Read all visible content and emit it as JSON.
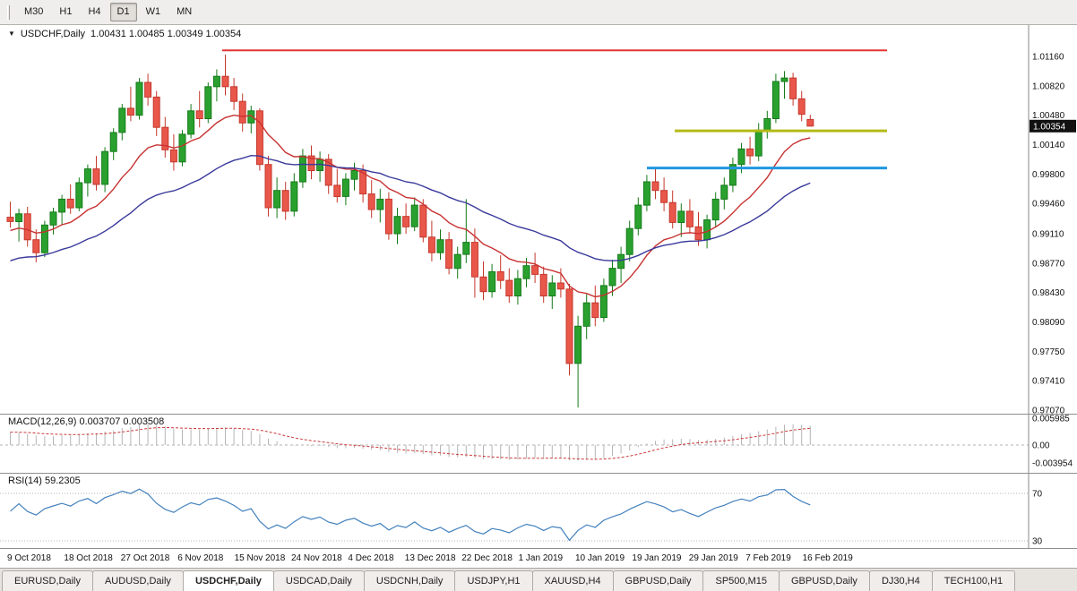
{
  "toolbar": {
    "timeframes": [
      {
        "label": "M30",
        "active": false
      },
      {
        "label": "H1",
        "active": false
      },
      {
        "label": "H4",
        "active": false
      },
      {
        "label": "D1",
        "active": true
      },
      {
        "label": "W1",
        "active": false
      },
      {
        "label": "MN",
        "active": false
      }
    ]
  },
  "chart": {
    "title_symbol": "USDCHF,Daily",
    "ohlc_text": "1.00431 1.00485 1.00349 1.00354",
    "current_price_label": "1.00354"
  },
  "macd_panel": {
    "label": "MACD(12,26,9) 0.003707 0.003508"
  },
  "rsi_panel": {
    "label": "RSI(14) 59.2305"
  },
  "chart_data": {
    "type": "candlestick",
    "symbol": "USDCHF",
    "timeframe": "Daily",
    "title": "USDCHF,Daily",
    "y_ticks": [
      "1.01160",
      "1.00820",
      "1.00480",
      "1.00140",
      "0.99800",
      "0.99460",
      "0.99110",
      "0.98770",
      "0.98430",
      "0.98090",
      "0.97750",
      "0.97410",
      "0.97070"
    ],
    "current_price": 1.00354,
    "x_labels": [
      "9 Oct 2018",
      "18 Oct 2018",
      "27 Oct 2018",
      "6 Nov 2018",
      "15 Nov 2018",
      "24 Nov 2018",
      "4 Dec 2018",
      "13 Dec 2018",
      "22 Dec 2018",
      "1 Jan 2019",
      "10 Jan 2019",
      "19 Jan 2019",
      "29 Jan 2019",
      "7 Feb 2019",
      "16 Feb 2019"
    ],
    "candles": [
      [
        0.993,
        0.9948,
        0.9918,
        0.9925
      ],
      [
        0.9925,
        0.994,
        0.9902,
        0.9934
      ],
      [
        0.9934,
        0.9942,
        0.9896,
        0.9904
      ],
      [
        0.9904,
        0.9916,
        0.9878,
        0.9889
      ],
      [
        0.9889,
        0.9926,
        0.9884,
        0.9921
      ],
      [
        0.9921,
        0.9941,
        0.991,
        0.9936
      ],
      [
        0.9936,
        0.9956,
        0.9921,
        0.9951
      ],
      [
        0.9951,
        0.9968,
        0.9934,
        0.9941
      ],
      [
        0.9941,
        0.9976,
        0.9937,
        0.997
      ],
      [
        0.997,
        0.9991,
        0.9954,
        0.9986
      ],
      [
        0.9986,
        1.0001,
        0.9961,
        0.9968
      ],
      [
        0.9968,
        1.0011,
        0.9959,
        1.0006
      ],
      [
        1.0006,
        1.0033,
        0.9996,
        1.0028
      ],
      [
        1.0028,
        1.0061,
        1.0019,
        1.0056
      ],
      [
        1.0056,
        1.0081,
        1.0041,
        1.0048
      ],
      [
        1.0048,
        1.0091,
        1.0043,
        1.0086
      ],
      [
        1.0086,
        1.0096,
        1.0059,
        1.0069
      ],
      [
        1.0069,
        1.0076,
        1.0024,
        1.0034
      ],
      [
        1.0034,
        1.0046,
        0.9999,
        1.0008
      ],
      [
        1.0008,
        1.0026,
        0.9984,
        0.9994
      ],
      [
        0.9994,
        1.0031,
        0.9989,
        1.0026
      ],
      [
        1.0026,
        1.0061,
        1.0021,
        1.0053
      ],
      [
        1.0053,
        1.0076,
        1.0034,
        1.0044
      ],
      [
        1.0044,
        1.0086,
        1.0039,
        1.0081
      ],
      [
        1.0081,
        1.0101,
        1.0064,
        1.0093
      ],
      [
        1.0093,
        1.0118,
        1.0071,
        1.0081
      ],
      [
        1.0081,
        1.0091,
        1.0054,
        1.0064
      ],
      [
        1.0064,
        1.0073,
        1.0029,
        1.0039
      ],
      [
        1.0039,
        1.0059,
        1.0027,
        1.0053
      ],
      [
        1.0053,
        1.0056,
        0.9984,
        0.9991
      ],
      [
        0.9991,
        1.0001,
        0.9931,
        0.9941
      ],
      [
        0.9941,
        0.9976,
        0.9929,
        0.9961
      ],
      [
        0.9961,
        0.9971,
        0.9927,
        0.9937
      ],
      [
        0.9937,
        0.9981,
        0.9931,
        0.9971
      ],
      [
        0.9971,
        1.0009,
        0.9964,
        1.0001
      ],
      [
        1.0001,
        1.0013,
        0.9974,
        0.9984
      ],
      [
        0.9984,
        1.0006,
        0.9971,
        0.9997
      ],
      [
        0.9997,
        1.0003,
        0.9957,
        0.9967
      ],
      [
        0.9967,
        0.9986,
        0.9947,
        0.9954
      ],
      [
        0.9954,
        0.9981,
        0.9944,
        0.9974
      ],
      [
        0.9974,
        0.9993,
        0.9961,
        0.9984
      ],
      [
        0.9984,
        0.9991,
        0.9947,
        0.9957
      ],
      [
        0.9957,
        0.9973,
        0.9929,
        0.9939
      ],
      [
        0.9939,
        0.9963,
        0.9924,
        0.9951
      ],
      [
        0.9951,
        0.9959,
        0.9904,
        0.9911
      ],
      [
        0.9911,
        0.9941,
        0.9899,
        0.9931
      ],
      [
        0.9931,
        0.9946,
        0.9911,
        0.9919
      ],
      [
        0.9919,
        0.9953,
        0.9914,
        0.9944
      ],
      [
        0.9944,
        0.9951,
        0.9901,
        0.9907
      ],
      [
        0.9907,
        0.9926,
        0.9879,
        0.9889
      ],
      [
        0.9889,
        0.9916,
        0.9881,
        0.9904
      ],
      [
        0.9904,
        0.9913,
        0.9864,
        0.9871
      ],
      [
        0.9871,
        0.9896,
        0.9859,
        0.9887
      ],
      [
        0.9887,
        0.9951,
        0.9877,
        0.9901
      ],
      [
        0.9901,
        0.9917,
        0.9837,
        0.9861
      ],
      [
        0.9861,
        0.9879,
        0.9834,
        0.9844
      ],
      [
        0.9844,
        0.9876,
        0.9837,
        0.9867
      ],
      [
        0.9867,
        0.9886,
        0.9847,
        0.9857
      ],
      [
        0.9857,
        0.9871,
        0.9831,
        0.9839
      ],
      [
        0.9839,
        0.9869,
        0.9829,
        0.9859
      ],
      [
        0.9859,
        0.9883,
        0.9849,
        0.9874
      ],
      [
        0.9874,
        0.9889,
        0.9854,
        0.9864
      ],
      [
        0.9864,
        0.9873,
        0.9831,
        0.9839
      ],
      [
        0.9839,
        0.9863,
        0.9824,
        0.9854
      ],
      [
        0.9854,
        0.9871,
        0.9837,
        0.9847
      ],
      [
        0.9847,
        0.9853,
        0.9747,
        0.9761
      ],
      [
        0.9761,
        0.9816,
        0.971,
        0.9804
      ],
      [
        0.9804,
        0.9841,
        0.9789,
        0.9831
      ],
      [
        0.9831,
        0.9851,
        0.9804,
        0.9814
      ],
      [
        0.9814,
        0.9859,
        0.9809,
        0.9851
      ],
      [
        0.9851,
        0.9881,
        0.9839,
        0.9871
      ],
      [
        0.9871,
        0.9896,
        0.9854,
        0.9887
      ],
      [
        0.9887,
        0.9926,
        0.9879,
        0.9917
      ],
      [
        0.9917,
        0.9953,
        0.9909,
        0.9944
      ],
      [
        0.9944,
        0.9979,
        0.9937,
        0.9971
      ],
      [
        0.9971,
        0.9986,
        0.9951,
        0.9961
      ],
      [
        0.9961,
        0.9976,
        0.9937,
        0.9947
      ],
      [
        0.9947,
        0.9961,
        0.9917,
        0.9924
      ],
      [
        0.9924,
        0.9946,
        0.9907,
        0.9937
      ],
      [
        0.9937,
        0.9951,
        0.9911,
        0.9919
      ],
      [
        0.9919,
        0.9936,
        0.9897,
        0.9904
      ],
      [
        0.9904,
        0.9933,
        0.9894,
        0.9927
      ],
      [
        0.9927,
        0.9959,
        0.9919,
        0.9951
      ],
      [
        0.9951,
        0.9976,
        0.9939,
        0.9967
      ],
      [
        0.9967,
        0.9999,
        0.9959,
        0.9991
      ],
      [
        0.9991,
        1.0016,
        0.9981,
        1.0009
      ],
      [
        1.0009,
        1.0023,
        0.9991,
        1.0001
      ],
      [
        1.0001,
        1.0039,
        0.9995,
        1.0031
      ],
      [
        1.0031,
        1.0053,
        1.0021,
        1.0044
      ],
      [
        1.0044,
        1.0096,
        1.0039,
        1.0087
      ],
      [
        1.0087,
        1.0099,
        1.0067,
        1.0091
      ],
      [
        1.0091,
        1.0097,
        1.0059,
        1.0067
      ],
      [
        1.0067,
        1.0076,
        1.0041,
        1.0049
      ],
      [
        1.00431,
        1.00485,
        1.00349,
        1.00354
      ]
    ],
    "colors": {
      "bull_fill": "#2aa12e",
      "bull_stroke": "#157a19",
      "bear_fill": "#e9574b",
      "bear_stroke": "#c4372b",
      "macd_hist": "#b6b6b6",
      "macd_signal": "#cc3a3a",
      "rsi_line": "#4381bd",
      "axis_line": "#8a8a8a",
      "level_dots": "#b3b3b3",
      "price_badge_bg": "#111111"
    },
    "moving_averages": [
      {
        "period": 13,
        "color": "#c83232",
        "seed_offset": -0.0012
      },
      {
        "period": 34,
        "color": "#39399b",
        "seed_offset": -0.0048
      }
    ],
    "hlines": [
      {
        "name": "resistance-line",
        "price": 1.0123,
        "color": "#e23232",
        "width": 2,
        "from": 0.216,
        "to": 0.8624
      },
      {
        "name": "yellow-level-line",
        "price": 1.003,
        "color": "#b4ba16",
        "width": 3,
        "from": 0.6559,
        "to": 0.8624
      },
      {
        "name": "blue-level-line",
        "price": 0.9987,
        "color": "#1f97e0",
        "width": 3,
        "from": 0.6289,
        "to": 0.8624
      }
    ],
    "macd": {
      "fast": 12,
      "slow": 26,
      "signal": 9,
      "value": 0.003707,
      "signal_value": 0.003508,
      "y_ticks": [
        "0.005985",
        "0.00",
        "-0.003954"
      ],
      "tick_values": [
        0.005985,
        0,
        -0.003954
      ]
    },
    "rsi": {
      "period": 14,
      "value": 59.2305,
      "levels": [
        70,
        30
      ],
      "level_labels": [
        "70",
        "30"
      ]
    }
  },
  "tabs": [
    {
      "label": "EURUSD,Daily",
      "active": false
    },
    {
      "label": "AUDUSD,Daily",
      "active": false
    },
    {
      "label": "USDCHF,Daily",
      "active": true
    },
    {
      "label": "USDCAD,Daily",
      "active": false
    },
    {
      "label": "USDCNH,Daily",
      "active": false
    },
    {
      "label": "USDJPY,H1",
      "active": false
    },
    {
      "label": "XAUUSD,H4",
      "active": false
    },
    {
      "label": "GBPUSD,Daily",
      "active": false
    },
    {
      "label": "SP500,M15",
      "active": false
    },
    {
      "label": "GBPUSD,Daily",
      "active": false
    },
    {
      "label": "DJ30,H4",
      "active": false
    },
    {
      "label": "TECH100,H1",
      "active": false
    }
  ]
}
